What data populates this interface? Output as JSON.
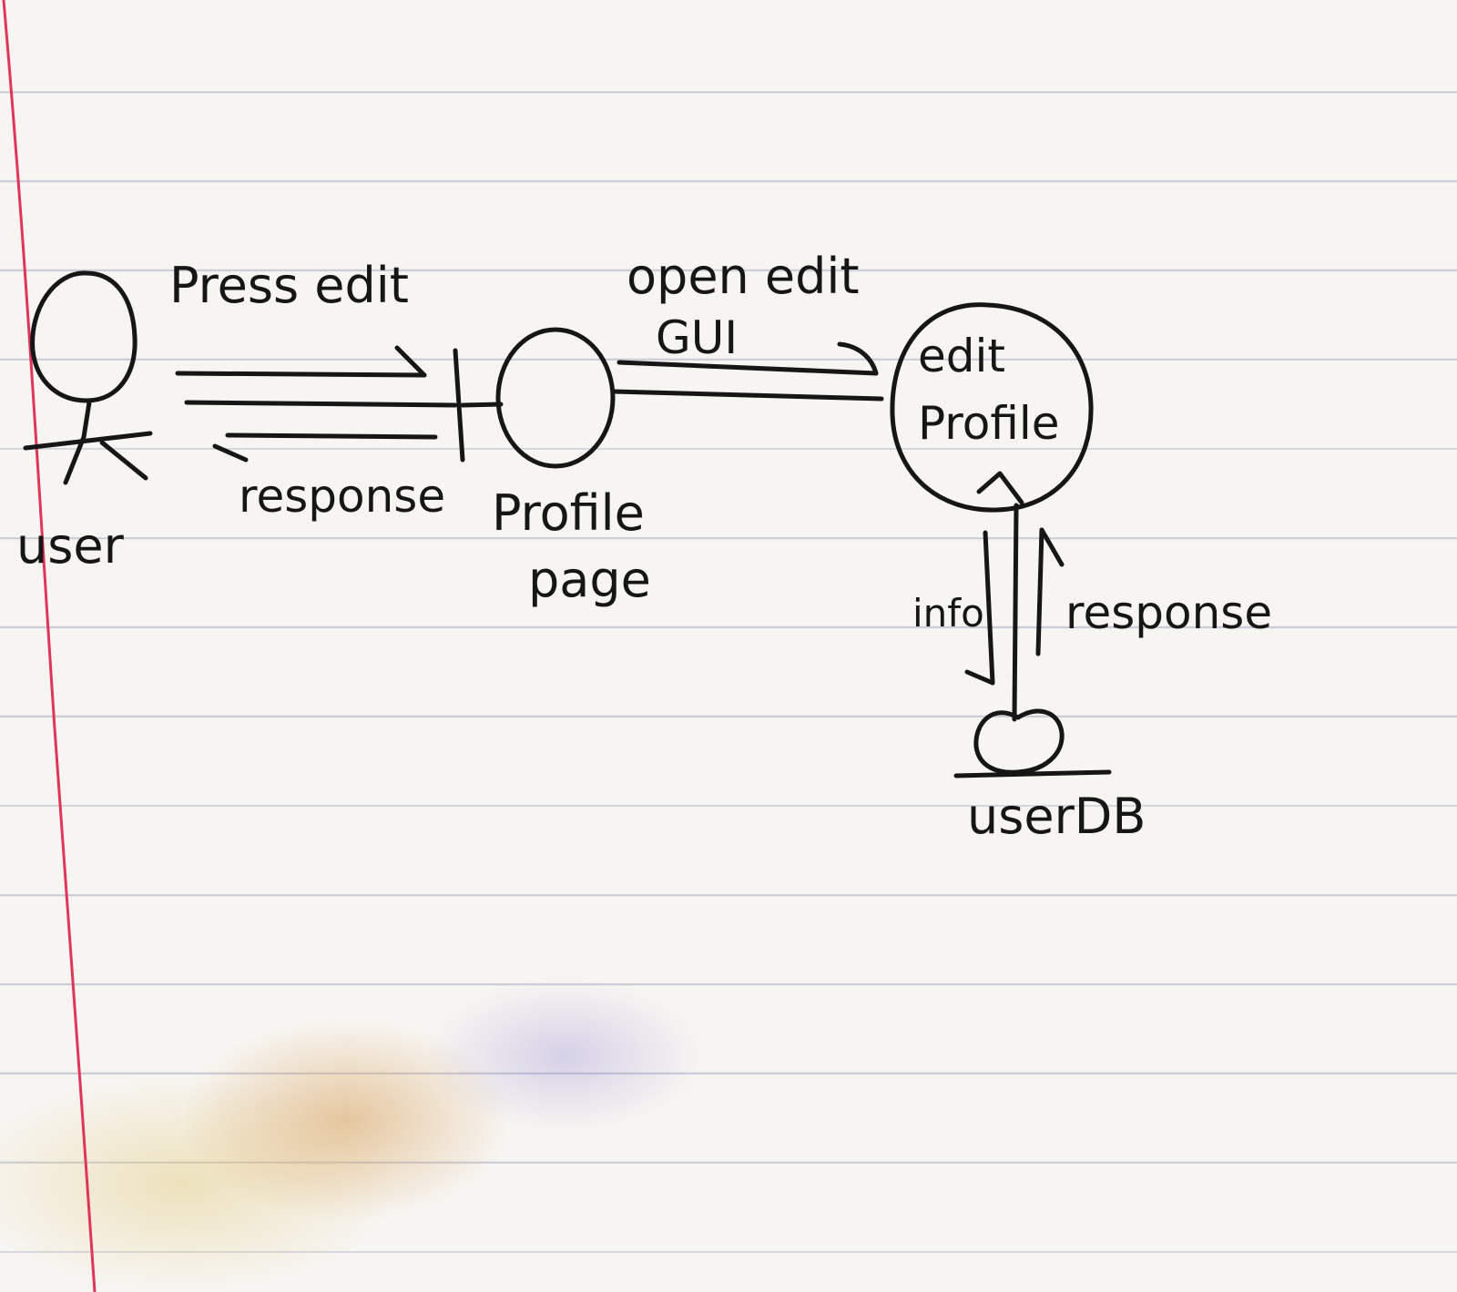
{
  "nodes": {
    "user": {
      "label": "user"
    },
    "profile_page": {
      "label_line1": "Profile",
      "label_line2": "page"
    },
    "edit_profile": {
      "label_line1": "edit",
      "label_line2": "Profile"
    },
    "user_db": {
      "label": "userDB"
    }
  },
  "edges": {
    "press_edit": {
      "label": "Press edit"
    },
    "response_to_user": {
      "label": "response"
    },
    "open_edit_gui": {
      "label_line1": "open edit",
      "label_line2": "GUI"
    },
    "info": {
      "label": "info"
    },
    "response_from_db": {
      "label": "response"
    }
  },
  "colors": {
    "ink": "#161616",
    "paper": "#f7f5f2",
    "rule_line": "#c9ccd6",
    "margin_line": "#e0355a"
  }
}
